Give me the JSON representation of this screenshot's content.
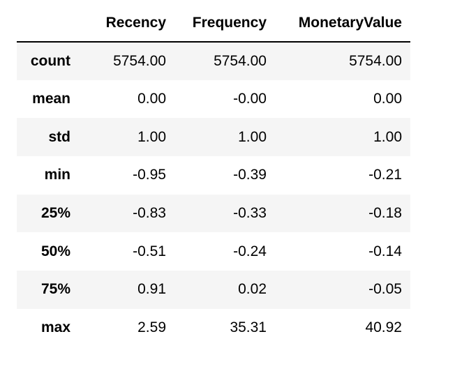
{
  "table": {
    "columns": [
      "Recency",
      "Frequency",
      "MonetaryValue"
    ],
    "rows": [
      {
        "label": "count",
        "values": [
          "5754.00",
          "5754.00",
          "5754.00"
        ]
      },
      {
        "label": "mean",
        "values": [
          "0.00",
          "-0.00",
          "0.00"
        ]
      },
      {
        "label": "std",
        "values": [
          "1.00",
          "1.00",
          "1.00"
        ]
      },
      {
        "label": "min",
        "values": [
          "-0.95",
          "-0.39",
          "-0.21"
        ]
      },
      {
        "label": "25%",
        "values": [
          "-0.83",
          "-0.33",
          "-0.18"
        ]
      },
      {
        "label": "50%",
        "values": [
          "-0.51",
          "-0.24",
          "-0.14"
        ]
      },
      {
        "label": "75%",
        "values": [
          "0.91",
          "0.02",
          "-0.05"
        ]
      },
      {
        "label": "max",
        "values": [
          "2.59",
          "35.31",
          "40.92"
        ]
      }
    ]
  },
  "colors": {
    "stripe": "#f5f5f5",
    "background": "#ffffff",
    "text": "#000000"
  }
}
